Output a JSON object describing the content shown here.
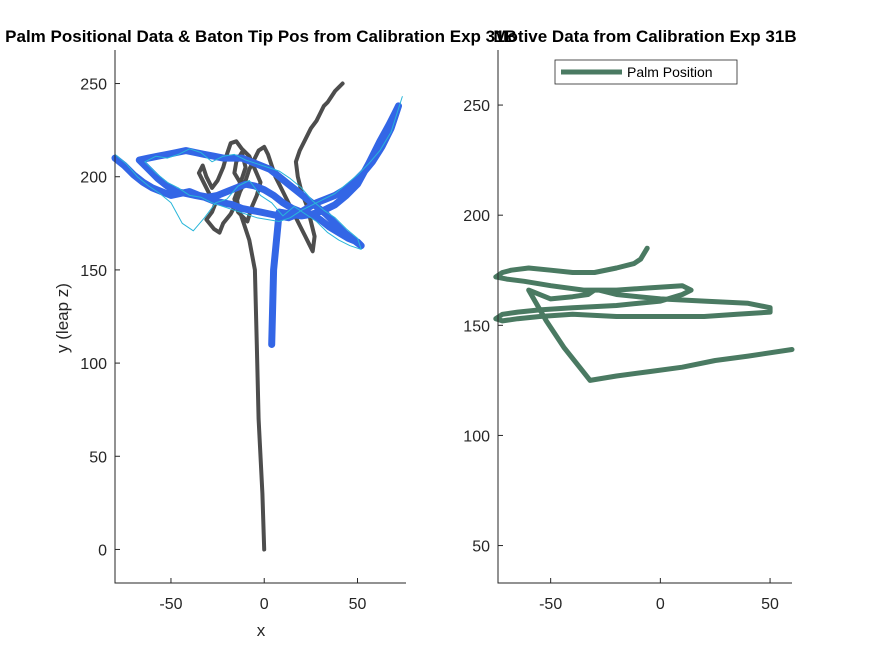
{
  "chart_data": [
    {
      "type": "line",
      "title": "Palm Positional Data & Baton Tip Pos from Calibration Exp 31B",
      "xlabel": "x",
      "ylabel": "y (leap z)",
      "xlim": [
        -80,
        76
      ],
      "ylim": [
        -18,
        268
      ],
      "xticks": [
        -50,
        0,
        50
      ],
      "yticks": [
        0,
        50,
        100,
        150,
        200,
        250
      ],
      "xtick_labels": [
        "-50",
        "0",
        "50"
      ],
      "ytick_labels": [
        "0",
        "50",
        "100",
        "150",
        "200",
        "250"
      ],
      "grid": false,
      "series": [
        {
          "color": "#4d4d4d",
          "width": 4,
          "x": [
            0,
            -1,
            -3,
            -4,
            -5,
            -8,
            -11,
            -14,
            -15,
            -13,
            -16,
            -15,
            -12,
            -10,
            -13,
            -16,
            -14,
            -9,
            -7,
            -4,
            -2,
            -5,
            -8,
            -12,
            -15,
            -18,
            -20,
            -22,
            -25,
            -28,
            -31,
            -33,
            -35,
            -32,
            -29,
            -26,
            -28,
            -31,
            -27,
            -24,
            -22,
            -18,
            -15,
            -13,
            -10,
            -8,
            -5,
            -3,
            0,
            2,
            4,
            6,
            8,
            10,
            12,
            14,
            16,
            18,
            20,
            22,
            24,
            26,
            27,
            25,
            23,
            20,
            18,
            17,
            19,
            22,
            25,
            28,
            30,
            32,
            34,
            36,
            38,
            40,
            42
          ],
          "y": [
            0,
            30,
            70,
            110,
            150,
            166,
            175,
            184,
            190,
            197,
            202,
            208,
            213,
            205,
            196,
            188,
            181,
            176,
            183,
            190,
            197,
            204,
            211,
            215,
            219,
            218,
            212,
            205,
            198,
            194,
            200,
            206,
            202,
            196,
            190,
            186,
            181,
            177,
            172,
            170,
            175,
            180,
            186,
            192,
            198,
            204,
            210,
            214,
            216,
            212,
            206,
            200,
            196,
            192,
            188,
            184,
            180,
            176,
            172,
            168,
            164,
            160,
            168,
            176,
            184,
            192,
            200,
            208,
            214,
            220,
            226,
            230,
            234,
            238,
            240,
            243,
            246,
            248,
            250
          ]
        },
        {
          "color": "#3366e6",
          "width": 7,
          "x": [
            -80,
            -75,
            -70,
            -65,
            -60,
            -55,
            -50,
            -45,
            -40,
            -35,
            -30,
            -25,
            -20,
            -15,
            -10,
            -5,
            0,
            5,
            10,
            15,
            20,
            25,
            30,
            35,
            40,
            45,
            50,
            52,
            48,
            43,
            38,
            33,
            28,
            23,
            18,
            13,
            8,
            3,
            -2,
            -7,
            -12,
            -17,
            -22,
            -27,
            -32,
            -37,
            -42,
            -47,
            -52,
            -57,
            -62,
            -67,
            -62,
            -57,
            -52,
            -47,
            -42,
            -37,
            -32,
            -27,
            -22,
            -17,
            -12,
            -7,
            -2,
            3,
            8,
            13,
            18,
            23,
            28,
            33,
            38,
            43,
            48,
            53,
            58,
            63,
            68,
            72,
            70,
            67,
            62,
            56,
            50,
            44,
            38,
            32,
            26,
            20,
            14,
            8,
            5,
            4
          ],
          "y": [
            210,
            206,
            201,
            197,
            194,
            192,
            190,
            191,
            192,
            190,
            189,
            190,
            192,
            194,
            196,
            195,
            193,
            190,
            186,
            183,
            181,
            180,
            177,
            173,
            170,
            167,
            165,
            163,
            166,
            170,
            175,
            180,
            184,
            188,
            192,
            196,
            200,
            204,
            206,
            208,
            210,
            210,
            210,
            211,
            212,
            213,
            214,
            213,
            212,
            211,
            210,
            209,
            204,
            199,
            195,
            192,
            191,
            190,
            189,
            187,
            186,
            185,
            183,
            182,
            181,
            180,
            179,
            178,
            180,
            183,
            186,
            188,
            190,
            193,
            197,
            202,
            208,
            216,
            226,
            238,
            234,
            228,
            219,
            207,
            196,
            190,
            185,
            182,
            180,
            179,
            180,
            181,
            150,
            110
          ]
        },
        {
          "color": "#29b6d9",
          "width": 1,
          "x": [
            -80,
            -74,
            -68,
            -62,
            -56,
            -50,
            -44,
            -38,
            -32,
            -26,
            -20,
            -14,
            -8,
            -2,
            4,
            10,
            16,
            22,
            28,
            34,
            40,
            46,
            52,
            50,
            44,
            38,
            32,
            26,
            20,
            14,
            8,
            2,
            -4,
            -10,
            -16,
            -22,
            -28,
            -34,
            -40,
            -46,
            -52,
            -58,
            -64,
            -58,
            -52,
            -46,
            -40,
            -34,
            -28,
            -22,
            -16,
            -10,
            -4,
            2,
            8,
            14,
            20,
            26,
            32,
            38,
            44,
            50,
            56,
            62,
            68,
            74
          ],
          "y": [
            212,
            207,
            200,
            195,
            191,
            186,
            175,
            171,
            178,
            186,
            188,
            195,
            198,
            190,
            186,
            179,
            184,
            180,
            176,
            170,
            166,
            163,
            161,
            167,
            172,
            178,
            182,
            187,
            194,
            199,
            203,
            205,
            207,
            209,
            212,
            211,
            208,
            213,
            215,
            212,
            210,
            211,
            208,
            202,
            197,
            194,
            190,
            189,
            186,
            184,
            182,
            180,
            178,
            177,
            176,
            178,
            182,
            185,
            188,
            191,
            196,
            201,
            207,
            214,
            224,
            243
          ]
        }
      ]
    },
    {
      "type": "line",
      "title": "Motive Data from Calibration Exp 31B",
      "xlabel": "",
      "ylabel": "",
      "xlim": [
        -74,
        60
      ],
      "ylim": [
        33,
        275
      ],
      "xticks": [
        -50,
        0,
        50
      ],
      "yticks": [
        50,
        100,
        150,
        200,
        250
      ],
      "xtick_labels": [
        "-50",
        "0",
        "50"
      ],
      "ytick_labels": [
        "50",
        "100",
        "150",
        "200",
        "250"
      ],
      "grid": false,
      "legend": {
        "entries": [
          "Palm Position"
        ],
        "placement": "top-center"
      },
      "series": [
        {
          "name": "Palm Position",
          "color": "#4a7a62",
          "width": 5,
          "x": [
            -6,
            -9,
            -12,
            -20,
            -30,
            -40,
            -50,
            -60,
            -68,
            -72,
            -75,
            -70,
            -62,
            -50,
            -35,
            -20,
            -5,
            10,
            14,
            10,
            0,
            -20,
            -40,
            -55,
            -65,
            -72,
            -75,
            -72,
            -65,
            -55,
            -40,
            -20,
            0,
            20,
            35,
            50,
            50,
            40,
            20,
            0,
            -10,
            -20,
            -28,
            -30,
            -33,
            -40,
            -50,
            -60,
            -52,
            -44,
            -36,
            -32,
            -20,
            -5,
            10,
            25,
            40,
            60
          ],
          "y": [
            185,
            180,
            178,
            176,
            174,
            174,
            175,
            176,
            175,
            174,
            172,
            171,
            170,
            168,
            166,
            166,
            167,
            168,
            166,
            164,
            161,
            159,
            158,
            157,
            156,
            155,
            153,
            152,
            153,
            154,
            155,
            154,
            154,
            154,
            155,
            156,
            158,
            160,
            161,
            162,
            163,
            164,
            166,
            166,
            164,
            163,
            162,
            166,
            152,
            140,
            130,
            125,
            127,
            129,
            131,
            134,
            136,
            139
          ]
        }
      ]
    }
  ]
}
